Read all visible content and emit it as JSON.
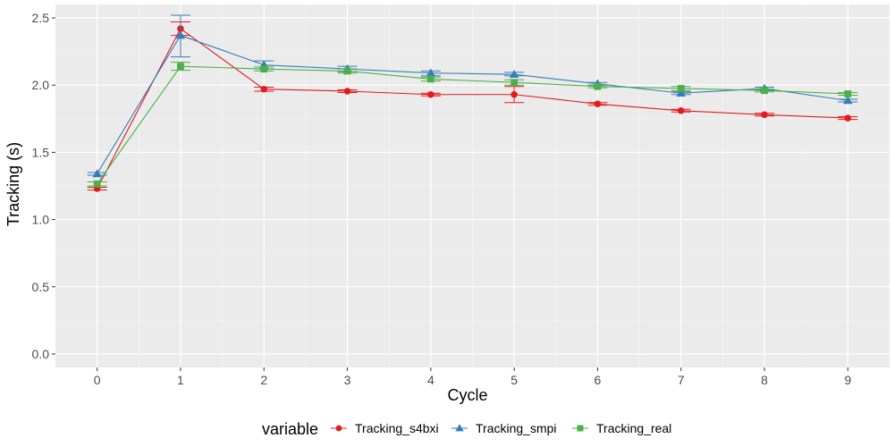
{
  "chart_data": {
    "type": "line",
    "xlabel": "Cycle",
    "ylabel": "Tracking (s)",
    "x": [
      0,
      1,
      2,
      3,
      4,
      5,
      6,
      7,
      8,
      9
    ],
    "xlim": [
      -0.5,
      9.5
    ],
    "ylim": [
      -0.1,
      2.6
    ],
    "xticks": [
      "0",
      "1",
      "2",
      "3",
      "4",
      "5",
      "6",
      "7",
      "8",
      "9"
    ],
    "yticks": [
      "0.0",
      "0.5",
      "1.0",
      "1.5",
      "2.0",
      "2.5"
    ],
    "grid": true,
    "legend_position": "bottom",
    "legend_title": "variable",
    "series": [
      {
        "name": "Tracking_s4bxi",
        "color": "#e41a1c",
        "marker": "circle",
        "values": [
          1.23,
          2.42,
          1.97,
          1.955,
          1.93,
          1.93,
          1.86,
          1.81,
          1.78,
          1.755
        ],
        "error_low": [
          1.22,
          2.37,
          1.955,
          1.945,
          1.92,
          1.87,
          1.85,
          1.8,
          1.77,
          1.745
        ],
        "error_high": [
          1.24,
          2.47,
          1.985,
          1.965,
          1.94,
          1.99,
          1.87,
          1.82,
          1.79,
          1.765
        ]
      },
      {
        "name": "Tracking_smpi",
        "color": "#377eb8",
        "marker": "triangle",
        "values": [
          1.34,
          2.37,
          2.15,
          2.12,
          2.09,
          2.08,
          2.01,
          1.94,
          1.975,
          1.885
        ],
        "error_low": [
          1.33,
          2.21,
          2.12,
          2.1,
          2.07,
          2.07,
          2.0,
          1.93,
          1.965,
          1.875
        ],
        "error_high": [
          1.35,
          2.52,
          2.18,
          2.14,
          2.105,
          2.095,
          2.02,
          1.95,
          1.985,
          1.895
        ]
      },
      {
        "name": "Tracking_real",
        "color": "#4daf4a",
        "marker": "square",
        "values": [
          1.265,
          2.14,
          2.12,
          2.105,
          2.045,
          2.02,
          1.99,
          1.975,
          1.96,
          1.935
        ],
        "error_low": [
          1.25,
          2.11,
          2.105,
          2.09,
          2.03,
          2.0,
          1.98,
          1.96,
          1.95,
          1.925
        ],
        "error_high": [
          1.28,
          2.17,
          2.135,
          2.12,
          2.06,
          2.04,
          2.0,
          1.99,
          1.97,
          1.945
        ]
      }
    ]
  }
}
